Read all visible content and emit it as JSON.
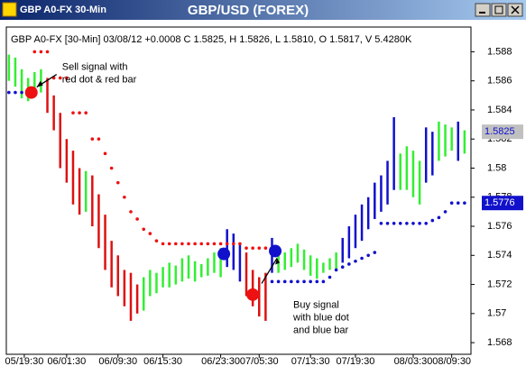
{
  "window_title": "GBP A0-FX 30-Min",
  "chart_data": {
    "type": "hilo",
    "title": "GBP/USD (FOREX)",
    "header": "GBP A0-FX [30-Min] 03/08/12 +0.0008 C 1.5825, H 1.5826, L 1.5810, O 1.5817, V 5.4280K",
    "x": [
      0,
      1,
      2,
      3,
      4,
      5,
      6,
      7,
      8,
      9,
      10,
      11,
      12,
      13,
      14,
      15,
      16,
      17,
      18,
      19,
      20,
      21,
      22,
      23,
      24,
      25,
      26,
      27,
      28,
      29,
      30,
      31,
      32,
      33,
      34,
      35,
      36,
      37,
      38,
      39,
      40,
      41,
      42,
      43,
      44,
      45,
      46,
      47,
      48,
      49,
      50,
      51,
      52,
      53,
      54,
      55,
      56,
      57,
      58,
      59,
      60,
      61,
      62,
      63,
      64,
      65,
      66,
      67,
      68,
      69,
      70,
      71
    ],
    "high": [
      1.5878,
      1.5876,
      1.5868,
      1.5862,
      1.5866,
      1.5868,
      1.5862,
      1.585,
      1.5838,
      1.582,
      1.5812,
      1.58,
      1.5798,
      1.5795,
      1.5782,
      1.5768,
      1.575,
      1.574,
      1.573,
      1.5728,
      1.572,
      1.5725,
      1.573,
      1.5728,
      1.5732,
      1.5735,
      1.5733,
      1.5738,
      1.574,
      1.5736,
      1.5734,
      1.5738,
      1.5742,
      1.5745,
      1.5758,
      1.5755,
      1.5748,
      1.5742,
      1.573,
      1.5725,
      1.5728,
      1.5752,
      1.5745,
      1.5742,
      1.5745,
      1.5748,
      1.5744,
      1.574,
      1.5738,
      1.5735,
      1.5738,
      1.5742,
      1.5752,
      1.576,
      1.5768,
      1.5775,
      1.578,
      1.579,
      1.5795,
      1.5805,
      1.5835,
      1.581,
      1.5815,
      1.5812,
      1.5805,
      1.5828,
      1.5825,
      1.5832,
      1.583,
      1.5828,
      1.5832,
      1.5826
    ],
    "low": [
      1.586,
      1.5856,
      1.5848,
      1.5846,
      1.585,
      1.5852,
      1.5838,
      1.5826,
      1.58,
      1.579,
      1.5775,
      1.5768,
      1.577,
      1.576,
      1.5745,
      1.573,
      1.5718,
      1.5712,
      1.5705,
      1.5695,
      1.57,
      1.5702,
      1.5712,
      1.5714,
      1.5718,
      1.5718,
      1.572,
      1.5722,
      1.5724,
      1.5722,
      1.5725,
      1.5726,
      1.5728,
      1.5725,
      1.5732,
      1.573,
      1.5722,
      1.5712,
      1.5705,
      1.5698,
      1.5695,
      1.5728,
      1.5728,
      1.573,
      1.5732,
      1.5735,
      1.573,
      1.5726,
      1.5724,
      1.5728,
      1.573,
      1.573,
      1.5735,
      1.5738,
      1.5745,
      1.575,
      1.5758,
      1.5765,
      1.577,
      1.5775,
      1.5785,
      1.5785,
      1.5785,
      1.578,
      1.5775,
      1.579,
      1.5795,
      1.5805,
      1.5808,
      1.5812,
      1.5805,
      1.581
    ],
    "bar_colors": [
      "#33ee33",
      "#33ee33",
      "#33ee33",
      "#33ee33",
      "#33ee33",
      "#33ee33",
      "#dd1111",
      "#dd1111",
      "#dd1111",
      "#dd1111",
      "#dd1111",
      "#dd1111",
      "#33ee33",
      "#dd1111",
      "#dd1111",
      "#dd1111",
      "#dd1111",
      "#dd1111",
      "#dd1111",
      "#dd1111",
      "#dd1111",
      "#33ee33",
      "#33ee33",
      "#33ee33",
      "#33ee33",
      "#33ee33",
      "#33ee33",
      "#33ee33",
      "#33ee33",
      "#33ee33",
      "#33ee33",
      "#33ee33",
      "#33ee33",
      "#33ee33",
      "#1111cc",
      "#1111cc",
      "#1111cc",
      "#dd1111",
      "#dd1111",
      "#dd1111",
      "#dd1111",
      "#1111cc",
      "#33ee33",
      "#33ee33",
      "#33ee33",
      "#33ee33",
      "#33ee33",
      "#33ee33",
      "#33ee33",
      "#33ee33",
      "#33ee33",
      "#33ee33",
      "#1111cc",
      "#1111cc",
      "#1111cc",
      "#1111cc",
      "#1111cc",
      "#1111cc",
      "#1111cc",
      "#1111cc",
      "#1111cc",
      "#33ee33",
      "#33ee33",
      "#33ee33",
      "#33ee33",
      "#1111cc",
      "#1111cc",
      "#33ee33",
      "#33ee33",
      "#33ee33",
      "#1111cc",
      "#33ee33"
    ],
    "stop": [
      1.5852,
      1.5852,
      1.5852,
      1.5852,
      1.588,
      1.588,
      1.588,
      1.5862,
      1.5862,
      1.5862,
      1.5838,
      1.5838,
      1.5838,
      1.582,
      1.582,
      1.581,
      1.58,
      1.579,
      1.578,
      1.577,
      1.5765,
      1.5758,
      1.5755,
      1.575,
      1.5748,
      1.5748,
      1.5748,
      1.5748,
      1.5748,
      1.5748,
      1.5748,
      1.5748,
      1.5748,
      1.5748,
      1.5748,
      1.5748,
      1.5748,
      1.5745,
      1.5745,
      1.5745,
      1.5745,
      1.5722,
      1.5722,
      1.5722,
      1.5722,
      1.5722,
      1.5722,
      1.5722,
      1.5722,
      1.5722,
      1.5725,
      1.573,
      1.5732,
      1.5734,
      1.5736,
      1.5738,
      1.574,
      1.5742,
      1.5762,
      1.5762,
      1.5762,
      1.5762,
      1.5762,
      1.5762,
      1.5762,
      1.5762,
      1.5764,
      1.5766,
      1.577,
      1.5776,
      1.5776,
      1.5776
    ],
    "stop_colors": [
      "#1111cc",
      "#1111cc",
      "#1111cc",
      "#1111cc",
      "#ee1111",
      "#ee1111",
      "#ee1111",
      "#ee1111",
      "#ee1111",
      "#ee1111",
      "#ee1111",
      "#ee1111",
      "#ee1111",
      "#ee1111",
      "#ee1111",
      "#ee1111",
      "#ee1111",
      "#ee1111",
      "#ee1111",
      "#ee1111",
      "#ee1111",
      "#ee1111",
      "#ee1111",
      "#ee1111",
      "#ee1111",
      "#ee1111",
      "#ee1111",
      "#ee1111",
      "#ee1111",
      "#ee1111",
      "#ee1111",
      "#ee1111",
      "#ee1111",
      "#ee1111",
      "#ee1111",
      "#ee1111",
      "#ee1111",
      "#ee1111",
      "#ee1111",
      "#ee1111",
      "#ee1111",
      "#1111cc",
      "#1111cc",
      "#1111cc",
      "#1111cc",
      "#1111cc",
      "#1111cc",
      "#1111cc",
      "#1111cc",
      "#1111cc",
      "#1111cc",
      "#1111cc",
      "#1111cc",
      "#1111cc",
      "#1111cc",
      "#1111cc",
      "#1111cc",
      "#1111cc",
      "#1111cc",
      "#1111cc",
      "#1111cc",
      "#1111cc",
      "#1111cc",
      "#1111cc",
      "#1111cc",
      "#1111cc",
      "#1111cc",
      "#1111cc",
      "#1111cc",
      "#1111cc",
      "#1111cc",
      "#1111cc"
    ],
    "signals": [
      {
        "x": 3.5,
        "value": 1.5852,
        "color": "#ee1111"
      },
      {
        "x": 33.5,
        "value": 1.5741,
        "color": "#1111cc"
      },
      {
        "x": 38,
        "value": 1.5713,
        "color": "#ee1111"
      },
      {
        "x": 41.5,
        "value": 1.5743,
        "color": "#1111cc"
      }
    ],
    "price_labels": [
      {
        "value": 1.5825,
        "color": "#c0c0c0",
        "text_color": "#1111cc"
      },
      {
        "value": 1.5776,
        "color": "#1111cc",
        "text_color": "#ffffff"
      }
    ],
    "annotations": [
      {
        "lines": [
          "Sell signal with",
          "red dot & red bar"
        ],
        "x": 3.5,
        "value": 1.5852
      },
      {
        "lines": [
          "Buy signal",
          "with blue dot",
          "and blue bar"
        ],
        "x": 41.5,
        "value": 1.5743
      }
    ],
    "xlim": [
      -0.4,
      72
    ],
    "xticks": [
      {
        "value": 2.4,
        "label": "05/19:30"
      },
      {
        "value": 9,
        "label": "06/01:30"
      },
      {
        "value": 17,
        "label": "06/09:30"
      },
      {
        "value": 24,
        "label": "06/15:30"
      },
      {
        "value": 33,
        "label": "06/23:30"
      },
      {
        "value": 39,
        "label": "07/05:30"
      },
      {
        "value": 47,
        "label": "07/13:30"
      },
      {
        "value": 54,
        "label": "07/19:30"
      },
      {
        "value": 63,
        "label": "08/03:30"
      },
      {
        "value": 69,
        "label": "08/09:30"
      }
    ],
    "ylim": [
      1.5672,
      1.5897
    ],
    "yticks": [
      1.568,
      1.57,
      1.572,
      1.574,
      1.576,
      1.578,
      1.58,
      1.582,
      1.584,
      1.586,
      1.588
    ]
  }
}
